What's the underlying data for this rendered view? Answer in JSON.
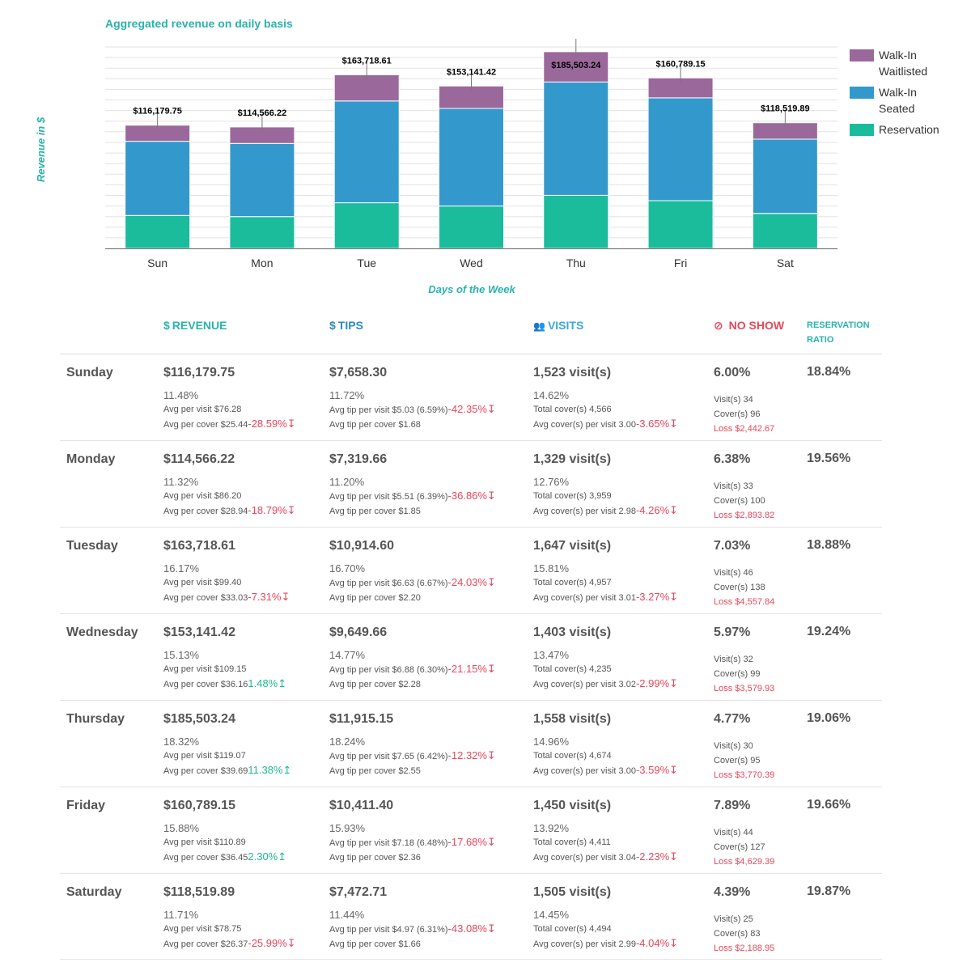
{
  "chart": {
    "title": "Aggregated revenue on daily basis",
    "xlabel": "Days of the Week",
    "ylabel": "Revenue in $",
    "colors": {
      "walkin_waitlisted": "#9b689b",
      "walkin_seated": "#3399cc",
      "reservation": "#1abc9c",
      "axis_title": "#2ab3ab"
    },
    "legend": [
      {
        "label": "Walk-In Waitlisted",
        "color": "#9b689b"
      },
      {
        "label": "Walk-In Seated",
        "color": "#3399cc"
      },
      {
        "label": "Reservation",
        "color": "#1abc9c"
      }
    ]
  },
  "chart_data": {
    "type": "bar",
    "stacked": true,
    "categories": [
      "Sun",
      "Mon",
      "Tue",
      "Wed",
      "Thu",
      "Fri",
      "Sat"
    ],
    "series": [
      {
        "name": "Reservation",
        "values": [
          31000,
          30000,
          43000,
          40000,
          50000,
          45000,
          33000
        ]
      },
      {
        "name": "Walk-In Seated",
        "values": [
          70000,
          69000,
          96000,
          92000,
          107000,
          97000,
          70000
        ]
      },
      {
        "name": "Walk-In Waitlisted",
        "values": [
          15179.75,
          15566.22,
          24718.61,
          21141.42,
          28503.24,
          18789.15,
          15519.89
        ]
      }
    ],
    "totals_labels": [
      "$116,179.75",
      "$114,566.22",
      "$163,718.61",
      "$153,141.42",
      "$185,503.24",
      "$160,789.15",
      "$118,519.89"
    ],
    "totals": [
      116179.75,
      114566.22,
      163718.61,
      153141.42,
      185503.24,
      160789.15,
      118519.89
    ],
    "xlabel": "Days of the Week",
    "ylabel": "Revenue in $",
    "ylim": [
      0,
      190000
    ],
    "grid": true,
    "legend_position": "right"
  },
  "table": {
    "headers": {
      "revenue": {
        "icon": "$",
        "label": "REVENUE",
        "color": "#2ab3ab"
      },
      "tips": {
        "icon": "$",
        "label": "TIPS",
        "color": "#2e8bc0"
      },
      "visits": {
        "icon": "👥",
        "label": "VISITS",
        "color": "#3aa8e0"
      },
      "noshow": {
        "icon": "⊘",
        "label": "NO SHOW",
        "color": "#e8465a"
      },
      "ratio": {
        "label": "RESERVATION RATIO",
        "color": "#2ab3ab"
      }
    },
    "rows": [
      {
        "day": "Sunday",
        "revenue": {
          "value": "$116,179.75",
          "pct": "11.48%",
          "avg_visit": "Avg per visit $76.28",
          "avg_cover": "Avg per cover $25.44",
          "avg_cover_delta": "-28.59%",
          "avg_cover_dir": "down"
        },
        "tips": {
          "value": "$7,658.30",
          "pct": "11.72%",
          "avg_tip_visit": "Avg tip per visit $5.03 (6.59%)",
          "avg_tip_visit_delta": "-42.35%",
          "avg_tip_visit_dir": "down",
          "avg_tip_cover": "Avg tip per cover $1.68"
        },
        "visits": {
          "value": "1,523 visit(s)",
          "pct": "14.62%",
          "total_covers": "Total cover(s) 4,566",
          "avg_covers": "Avg cover(s) per visit 3.00",
          "avg_covers_delta": "-3.65%",
          "avg_covers_dir": "down"
        },
        "noshow": {
          "value": "6.00%",
          "visits": "Visit(s) 34",
          "covers": "Cover(s) 96",
          "loss": "Loss $2,442.67"
        },
        "ratio": "18.84%"
      },
      {
        "day": "Monday",
        "revenue": {
          "value": "$114,566.22",
          "pct": "11.32%",
          "avg_visit": "Avg per visit $86.20",
          "avg_cover": "Avg per cover $28.94",
          "avg_cover_delta": "-18.79%",
          "avg_cover_dir": "down"
        },
        "tips": {
          "value": "$7,319.66",
          "pct": "11.20%",
          "avg_tip_visit": "Avg tip per visit $5.51 (6.39%)",
          "avg_tip_visit_delta": "-36.86%",
          "avg_tip_visit_dir": "down",
          "avg_tip_cover": "Avg tip per cover $1.85"
        },
        "visits": {
          "value": "1,329 visit(s)",
          "pct": "12.76%",
          "total_covers": "Total cover(s) 3,959",
          "avg_covers": "Avg cover(s) per visit 2.98",
          "avg_covers_delta": "-4.26%",
          "avg_covers_dir": "down"
        },
        "noshow": {
          "value": "6.38%",
          "visits": "Visit(s) 33",
          "covers": "Cover(s) 100",
          "loss": "Loss $2,893.82"
        },
        "ratio": "19.56%"
      },
      {
        "day": "Tuesday",
        "revenue": {
          "value": "$163,718.61",
          "pct": "16.17%",
          "avg_visit": "Avg per visit $99.40",
          "avg_cover": "Avg per cover $33.03",
          "avg_cover_delta": "-7.31%",
          "avg_cover_dir": "down"
        },
        "tips": {
          "value": "$10,914.60",
          "pct": "16.70%",
          "avg_tip_visit": "Avg tip per visit $6.63 (6.67%)",
          "avg_tip_visit_delta": "-24.03%",
          "avg_tip_visit_dir": "down",
          "avg_tip_cover": "Avg tip per cover $2.20"
        },
        "visits": {
          "value": "1,647 visit(s)",
          "pct": "15.81%",
          "total_covers": "Total cover(s) 4,957",
          "avg_covers": "Avg cover(s) per visit 3.01",
          "avg_covers_delta": "-3.27%",
          "avg_covers_dir": "down"
        },
        "noshow": {
          "value": "7.03%",
          "visits": "Visit(s) 46",
          "covers": "Cover(s) 138",
          "loss": "Loss $4,557.84"
        },
        "ratio": "18.88%"
      },
      {
        "day": "Wednesday",
        "revenue": {
          "value": "$153,141.42",
          "pct": "15.13%",
          "avg_visit": "Avg per visit $109.15",
          "avg_cover": "Avg per cover $36.16",
          "avg_cover_delta": "1.48%",
          "avg_cover_dir": "up"
        },
        "tips": {
          "value": "$9,649.66",
          "pct": "14.77%",
          "avg_tip_visit": "Avg tip per visit $6.88 (6.30%)",
          "avg_tip_visit_delta": "-21.15%",
          "avg_tip_visit_dir": "down",
          "avg_tip_cover": "Avg tip per cover $2.28"
        },
        "visits": {
          "value": "1,403 visit(s)",
          "pct": "13.47%",
          "total_covers": "Total cover(s) 4,235",
          "avg_covers": "Avg cover(s) per visit 3.02",
          "avg_covers_delta": "-2.99%",
          "avg_covers_dir": "down"
        },
        "noshow": {
          "value": "5.97%",
          "visits": "Visit(s) 32",
          "covers": "Cover(s) 99",
          "loss": "Loss $3,579.93"
        },
        "ratio": "19.24%"
      },
      {
        "day": "Thursday",
        "revenue": {
          "value": "$185,503.24",
          "pct": "18.32%",
          "avg_visit": "Avg per visit $119.07",
          "avg_cover": "Avg per cover $39.69",
          "avg_cover_delta": "11.38%",
          "avg_cover_dir": "up"
        },
        "tips": {
          "value": "$11,915.15",
          "pct": "18.24%",
          "avg_tip_visit": "Avg tip per visit $7.65 (6.42%)",
          "avg_tip_visit_delta": "-12.32%",
          "avg_tip_visit_dir": "down",
          "avg_tip_cover": "Avg tip per cover $2.55"
        },
        "visits": {
          "value": "1,558 visit(s)",
          "pct": "14.96%",
          "total_covers": "Total cover(s) 4,674",
          "avg_covers": "Avg cover(s) per visit 3.00",
          "avg_covers_delta": "-3.59%",
          "avg_covers_dir": "down"
        },
        "noshow": {
          "value": "4.77%",
          "visits": "Visit(s) 30",
          "covers": "Cover(s) 95",
          "loss": "Loss $3,770.39"
        },
        "ratio": "19.06%"
      },
      {
        "day": "Friday",
        "revenue": {
          "value": "$160,789.15",
          "pct": "15.88%",
          "avg_visit": "Avg per visit $110.89",
          "avg_cover": "Avg per cover $36.45",
          "avg_cover_delta": "2.30%",
          "avg_cover_dir": "up"
        },
        "tips": {
          "value": "$10,411.40",
          "pct": "15.93%",
          "avg_tip_visit": "Avg tip per visit $7.18 (6.48%)",
          "avg_tip_visit_delta": "-17.68%",
          "avg_tip_visit_dir": "down",
          "avg_tip_cover": "Avg tip per cover $2.36"
        },
        "visits": {
          "value": "1,450 visit(s)",
          "pct": "13.92%",
          "total_covers": "Total cover(s) 4,411",
          "avg_covers": "Avg cover(s) per visit 3.04",
          "avg_covers_delta": "-2.23%",
          "avg_covers_dir": "down"
        },
        "noshow": {
          "value": "7.89%",
          "visits": "Visit(s) 44",
          "covers": "Cover(s) 127",
          "loss": "Loss $4,629.39"
        },
        "ratio": "19.66%"
      },
      {
        "day": "Saturday",
        "revenue": {
          "value": "$118,519.89",
          "pct": "11.71%",
          "avg_visit": "Avg per visit $78.75",
          "avg_cover": "Avg per cover $26.37",
          "avg_cover_delta": "-25.99%",
          "avg_cover_dir": "down"
        },
        "tips": {
          "value": "$7,472.71",
          "pct": "11.44%",
          "avg_tip_visit": "Avg tip per visit $4.97 (6.31%)",
          "avg_tip_visit_delta": "-43.08%",
          "avg_tip_visit_dir": "down",
          "avg_tip_cover": "Avg tip per cover $1.66"
        },
        "visits": {
          "value": "1,505 visit(s)",
          "pct": "14.45%",
          "total_covers": "Total cover(s) 4,494",
          "avg_covers": "Avg cover(s) per visit 2.99",
          "avg_covers_delta": "-4.04%",
          "avg_covers_dir": "down"
        },
        "noshow": {
          "value": "4.39%",
          "visits": "Visit(s) 25",
          "covers": "Cover(s) 83",
          "loss": "Loss $2,188.95"
        },
        "ratio": "19.87%"
      }
    ]
  }
}
